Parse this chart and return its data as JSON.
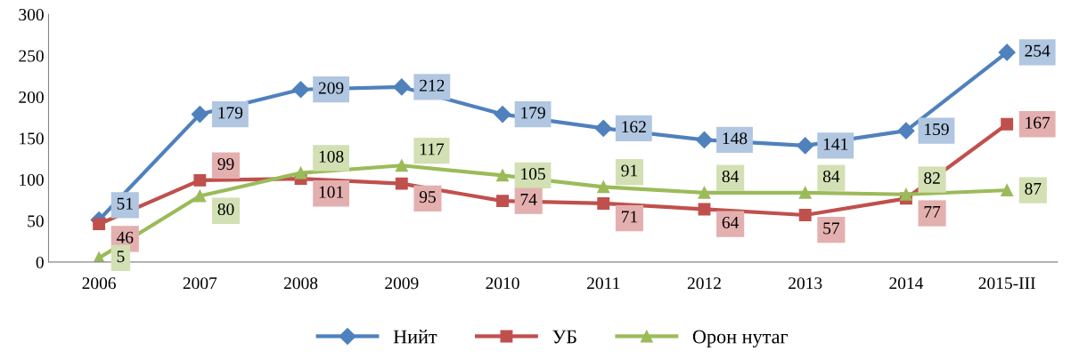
{
  "chart_data": {
    "type": "line",
    "categories": [
      "2006",
      "2007",
      "2008",
      "2009",
      "2010",
      "2011",
      "2012",
      "2013",
      "2014",
      "2015-III"
    ],
    "series": [
      {
        "name": "Нийт",
        "color": "#4f81bd",
        "marker": "diamond",
        "values": [
          51,
          179,
          209,
          212,
          179,
          162,
          148,
          141,
          159,
          254
        ]
      },
      {
        "name": "УБ",
        "color": "#c0504d",
        "marker": "square",
        "values": [
          46,
          99,
          101,
          95,
          74,
          71,
          64,
          57,
          77,
          167
        ]
      },
      {
        "name": "Орон нутаг",
        "color": "#9bbb59",
        "marker": "triangle",
        "values": [
          5,
          80,
          108,
          117,
          105,
          91,
          84,
          84,
          82,
          87
        ]
      }
    ],
    "ylim": [
      0,
      300
    ],
    "yticks": [
      0,
      50,
      100,
      150,
      200,
      250,
      300
    ],
    "grid": false,
    "legend": "bottom",
    "data_labels": true,
    "line_style": "solid"
  }
}
